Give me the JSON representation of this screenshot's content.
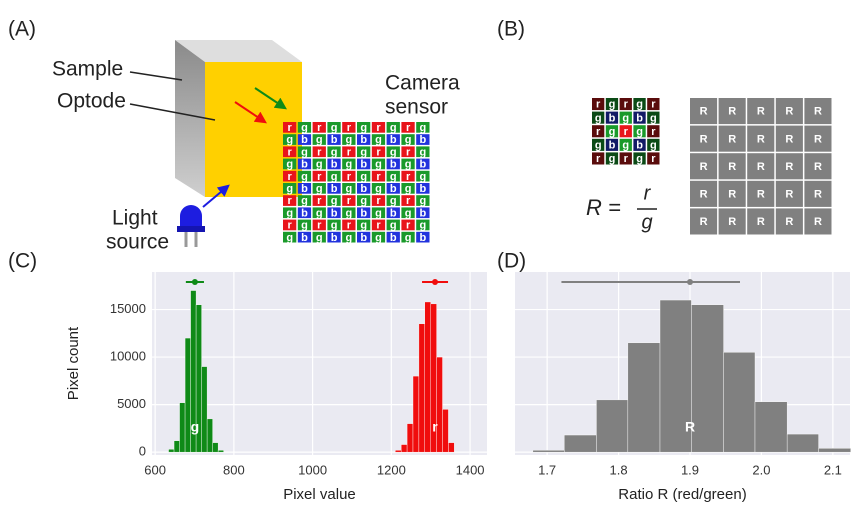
{
  "panel_labels": [
    "(A)",
    "(B)",
    "(C)",
    "(D)"
  ],
  "diagram": {
    "sample": "Sample",
    "optode": "Optode",
    "camera": [
      "Camera",
      "sensor"
    ],
    "light": [
      "Light",
      "source"
    ],
    "sensor_rows": [
      "rgrgrgrgrg",
      "gbgbgbgbgb",
      "rgrgrgrgrg",
      "gbgbgbgbgb",
      "rgrgrgrgrg",
      "gbgbgbgbgb",
      "rgrgrgrgrg",
      "gbgbgbgbgb",
      "rgrgrgrgrg",
      "gbgbgbgbgb"
    ],
    "kernel_rows": [
      "rgrgr",
      "gbgbg",
      "rgrgr",
      "gbgbg",
      "rgrgr"
    ],
    "formula": {
      "lhs": "R =",
      "num": "r",
      "den": "g"
    },
    "ratio_rows": [
      "RRRRR",
      "RRRRR",
      "RRRRR",
      "RRRRR",
      "RRRRR"
    ]
  },
  "chart_data": [
    {
      "type": "histogram",
      "xlabel": "Pixel value",
      "ylabel": "Pixel count",
      "xlim": [
        592,
        1443
      ],
      "ylim": [
        -300,
        18950
      ],
      "xticks": [
        600,
        800,
        1000,
        1200,
        1400
      ],
      "yticks": [
        0,
        5000,
        10000,
        15000
      ],
      "ytick_labels": true,
      "grid": true,
      "series": [
        {
          "name": "g",
          "color": "#0f8a17",
          "bins": [
            634,
            648,
            662,
            676,
            690,
            704,
            718,
            732,
            746,
            760,
            774
          ],
          "values": [
            300,
            1200,
            5200,
            12000,
            17000,
            15500,
            9000,
            3500,
            1000,
            200
          ],
          "errorbar": {
            "x": 701,
            "low": 678,
            "high": 724,
            "y": 17900
          }
        },
        {
          "name": "r",
          "color": "#f00d0d",
          "bins": [
            1210,
            1225,
            1240,
            1255,
            1270,
            1285,
            1300,
            1315,
            1330,
            1345,
            1360
          ],
          "values": [
            200,
            800,
            3000,
            8000,
            13500,
            15800,
            15600,
            10000,
            4500,
            1000
          ],
          "errorbar": {
            "x": 1311,
            "low": 1278,
            "high": 1344,
            "y": 17900
          }
        }
      ]
    },
    {
      "type": "histogram",
      "xlabel": "Ratio R (red/green)",
      "xlim": [
        1.655,
        2.124
      ],
      "ylim": [
        -300,
        18950
      ],
      "xticks": [
        1.7,
        1.8,
        1.9,
        {
          "value": 2,
          "label": "2.0"
        },
        2.1
      ],
      "yticks": [
        0,
        5000,
        10000,
        15000
      ],
      "ytick_labels": false,
      "grid": true,
      "series": [
        {
          "name": "R",
          "color": "#808080",
          "bins": [
            1.68,
            1.724,
            1.769,
            1.813,
            1.858,
            1.902,
            1.947,
            1.991,
            2.036,
            2.08,
            2.125
          ],
          "values": [
            200,
            1800,
            5500,
            11500,
            16000,
            15500,
            10500,
            5300,
            1900,
            400
          ],
          "errorbar": {
            "x": 1.9,
            "low": 1.72,
            "high": 1.97,
            "y": 17900
          }
        }
      ]
    }
  ]
}
